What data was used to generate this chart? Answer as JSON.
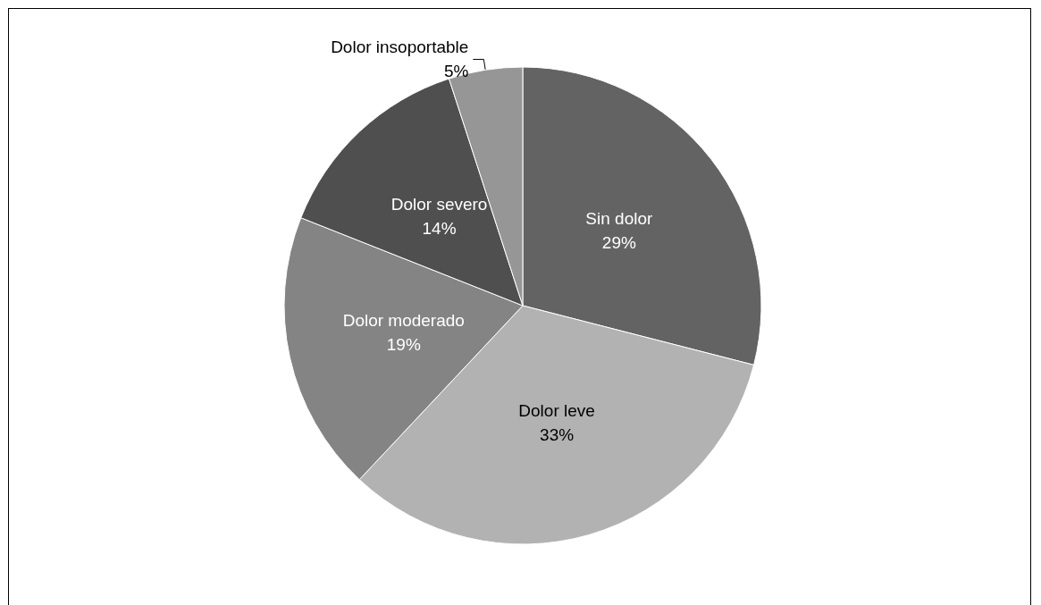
{
  "chart_data": {
    "type": "pie",
    "categories": [
      "Sin dolor",
      "Dolor leve",
      "Dolor moderado",
      "Dolor severo",
      "Dolor insoportable"
    ],
    "values": [
      29,
      33,
      19,
      14,
      5
    ],
    "value_labels": [
      "29%",
      "33%",
      "19%",
      "14%",
      "5%"
    ],
    "colors": [
      "#636363",
      "#b2b2b2",
      "#848484",
      "#4f4f4f",
      "#969696"
    ],
    "legend": false
  }
}
